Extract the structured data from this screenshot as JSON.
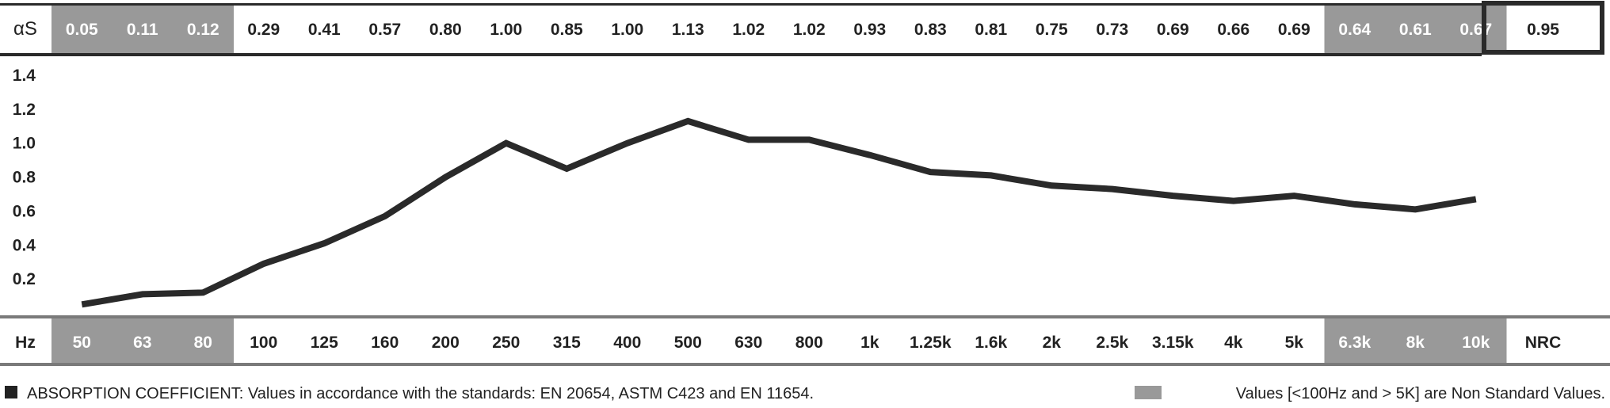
{
  "chart_data": {
    "type": "line",
    "row_label_top": "αS",
    "row_label_bottom": "Hz",
    "categories": [
      "50",
      "63",
      "80",
      "100",
      "125",
      "160",
      "200",
      "250",
      "315",
      "400",
      "500",
      "630",
      "800",
      "1k",
      "1.25k",
      "1.6k",
      "2k",
      "2.5k",
      "3.15k",
      "4k",
      "5k",
      "6.3k",
      "8k",
      "10k"
    ],
    "value_labels": [
      "0.05",
      "0.11",
      "0.12",
      "0.29",
      "0.41",
      "0.57",
      "0.80",
      "1.00",
      "0.85",
      "1.00",
      "1.13",
      "1.02",
      "1.02",
      "0.93",
      "0.83",
      "0.81",
      "0.75",
      "0.73",
      "0.69",
      "0.66",
      "0.69",
      "0.64",
      "0.61",
      "0.67"
    ],
    "values": [
      0.05,
      0.11,
      0.12,
      0.29,
      0.41,
      0.57,
      0.8,
      1.0,
      0.85,
      1.0,
      1.13,
      1.02,
      1.02,
      0.93,
      0.83,
      0.81,
      0.75,
      0.73,
      0.69,
      0.66,
      0.69,
      0.64,
      0.61,
      0.67
    ],
    "non_standard": [
      true,
      true,
      true,
      false,
      false,
      false,
      false,
      false,
      false,
      false,
      false,
      false,
      false,
      false,
      false,
      false,
      false,
      false,
      false,
      false,
      false,
      true,
      true,
      true
    ],
    "nrc_label": "NRC",
    "nrc_value": "0.95",
    "yticks": [
      "0.2",
      "0.4",
      "0.6",
      "0.8",
      "1.0",
      "1.2",
      "1.4"
    ],
    "ylim": [
      0,
      1.4
    ],
    "colors": {
      "line": "#2a2a2a",
      "highlight": "#999999",
      "border": "#2a2a2a"
    }
  },
  "footer": {
    "left_text": "ABSORPTION COEFFICIENT: Values in accordance with the standards: EN 20654, ASTM C423 and EN 11654.",
    "right_text": "Values [<100Hz and > 5K] are Non Standard Values."
  }
}
